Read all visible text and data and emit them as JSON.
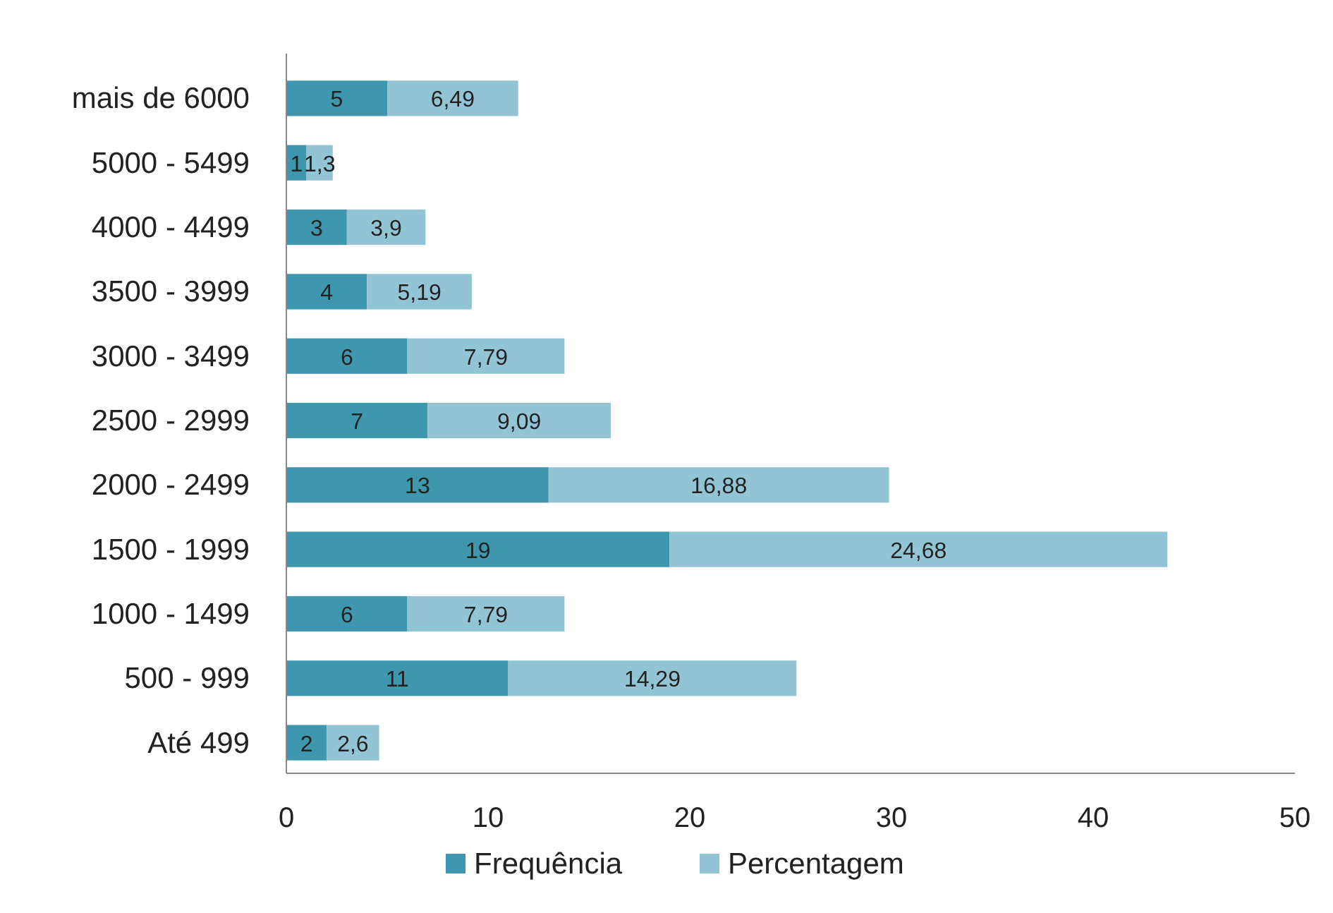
{
  "chart_data": {
    "type": "bar",
    "orientation": "horizontal",
    "stacked": true,
    "categories": [
      "mais de 6000",
      "5000 - 5499",
      "4000 - 4499",
      "3500 - 3999",
      "3000 - 3499",
      "2500 - 2999",
      "2000 - 2499",
      "1500 - 1999",
      "1000 - 1499",
      "500 - 999",
      "Até 499"
    ],
    "series": [
      {
        "name": "Frequência",
        "color": "#3f97ad",
        "values": [
          5,
          1,
          3,
          4,
          6,
          7,
          13,
          19,
          6,
          11,
          2
        ],
        "value_labels": [
          "5",
          "1",
          "3",
          "4",
          "6",
          "7",
          "13",
          "19",
          "6",
          "11",
          "2"
        ]
      },
      {
        "name": "Percentagem",
        "color": "#93c4d6",
        "values": [
          6.49,
          1.3,
          3.9,
          5.19,
          7.79,
          9.09,
          16.88,
          24.68,
          7.79,
          14.29,
          2.6
        ],
        "value_labels": [
          "6,49",
          "1,3",
          "3,9",
          "5,19",
          "7,79",
          "9,09",
          "16,88",
          "24,68",
          "7,79",
          "14,29",
          "2,6"
        ]
      }
    ],
    "xlim": [
      0,
      50
    ],
    "xticks": [
      0,
      10,
      20,
      30,
      40,
      50
    ],
    "grid": false,
    "legend": "bottom"
  }
}
